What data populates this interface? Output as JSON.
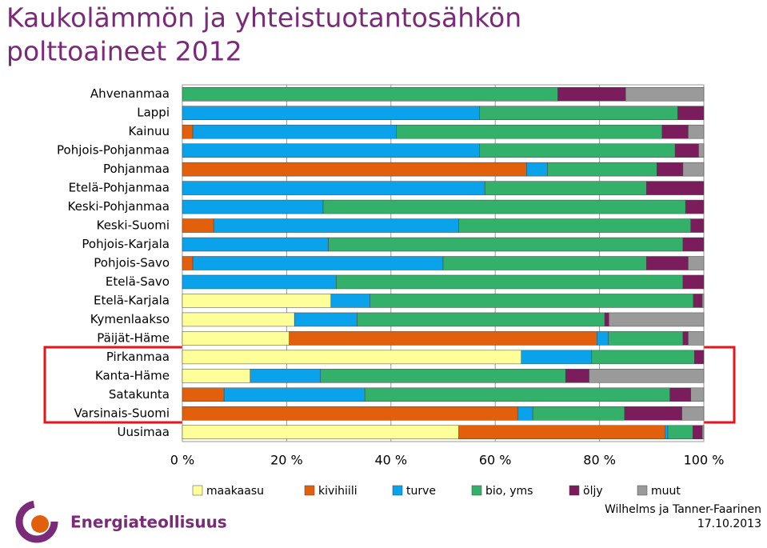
{
  "chart_data": {
    "type": "stacked-barh",
    "title_lines": [
      "Kaukolämmön ja yhteistuotantosähkön",
      "polttoaineet 2012"
    ],
    "categories": [
      "Ahvenanmaa",
      "Lappi",
      "Kainuu",
      "Pohjois-Pohjanmaa",
      "Pohjanmaa",
      "Etelä-Pohjanmaa",
      "Keski-Pohjanmaa",
      "Keski-Suomi",
      "Pohjois-Karjala",
      "Pohjois-Savo",
      "Etelä-Savo",
      "Etelä-Karjala",
      "Kymenlaakso",
      "Päijät-Häme",
      "Pirkanmaa",
      "Kanta-Häme",
      "Satakunta",
      "Varsinais-Suomi",
      "Uusimaa"
    ],
    "series": [
      {
        "name": "maakaasu",
        "color": "#ffff99",
        "values": [
          0,
          0,
          0,
          0,
          0,
          0,
          0,
          0,
          0,
          0,
          0,
          28.5,
          21.5,
          20.5,
          65,
          13,
          0,
          0,
          53
        ]
      },
      {
        "name": "kivihiili",
        "color": "#e2600c",
        "values": [
          0,
          0,
          2,
          0,
          66,
          0,
          0,
          6,
          0,
          2,
          0,
          0,
          0,
          59,
          0,
          0,
          8,
          64.3,
          39.6
        ]
      },
      {
        "name": "turve",
        "color": "#0aa2ea",
        "values": [
          0,
          57,
          39,
          57,
          4,
          58,
          27,
          47,
          28,
          48,
          29.5,
          7.5,
          12,
          2.2,
          13.5,
          13.5,
          27,
          2.9,
          0.5
        ]
      },
      {
        "name": "bio, yms",
        "color": "#33b06a",
        "values": [
          72,
          38,
          51,
          37.5,
          21,
          31,
          69.5,
          44.5,
          68,
          39,
          66.5,
          62,
          47.5,
          14.3,
          19.7,
          47,
          58.5,
          17.6,
          4.8
        ]
      },
      {
        "name": "öljy",
        "color": "#7b1c5c",
        "values": [
          13,
          5,
          5,
          4.5,
          5,
          11,
          3.5,
          2.5,
          4,
          8,
          4,
          1.7,
          0.8,
          1,
          1.8,
          4.5,
          4,
          11,
          1.8
        ]
      },
      {
        "name": "muut",
        "color": "#9a9a9a",
        "values": [
          15,
          0,
          3,
          1,
          4,
          0,
          0,
          0,
          0,
          3,
          0,
          0.3,
          18.2,
          3,
          0,
          22,
          2.5,
          4.2,
          0.3
        ]
      }
    ],
    "xlim": [
      0,
      100
    ],
    "xticks": [
      {
        "value": 0,
        "label": "0 %"
      },
      {
        "value": 20,
        "label": "20 %"
      },
      {
        "value": 40,
        "label": "40 %"
      },
      {
        "value": 60,
        "label": "60 %"
      },
      {
        "value": 80,
        "label": "80 %"
      },
      {
        "value": 100,
        "label": "100 %"
      }
    ],
    "grid": true,
    "legend": "bottom",
    "logo": "Energiateollisuus",
    "source": "Wilhelms ja Tanner-Faarinen",
    "date": "17.10.2013"
  }
}
